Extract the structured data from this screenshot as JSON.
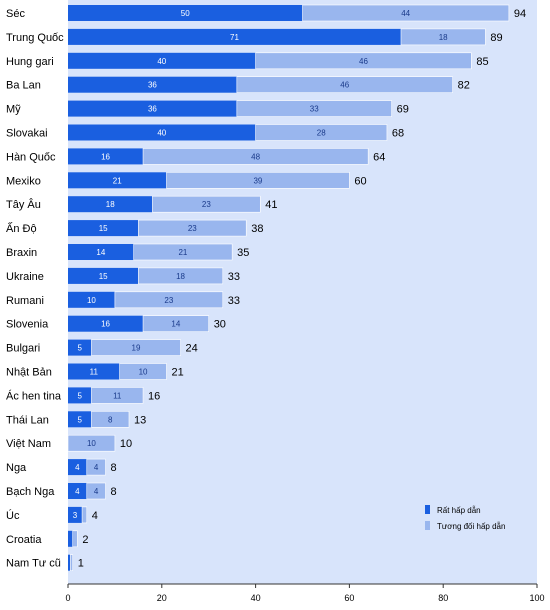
{
  "chart_data": {
    "type": "bar",
    "orientation": "horizontal",
    "stacked": true,
    "categories": [
      "Séc",
      "Trung Quốc",
      "Hung gari",
      "Ba Lan",
      "Mỹ",
      "Slovakai",
      "Hàn Quốc",
      "Mexiko",
      "Tây Âu",
      "Ấn Độ",
      "Braxin",
      "Ukraine",
      "Rumani",
      "Slovenia",
      "Bulgari",
      "Nhật Bản",
      "Ác hen tina",
      "Thái Lan",
      "Việt Nam",
      "Nga",
      "Bạch Nga",
      "Úc",
      "Croatia",
      "Nam Tư cũ"
    ],
    "series": [
      {
        "name": "Rất hấp dẫn",
        "color": "#1a5fe0",
        "values": [
          50,
          71,
          40,
          36,
          36,
          40,
          16,
          21,
          18,
          15,
          14,
          15,
          10,
          16,
          5,
          11,
          5,
          5,
          0,
          4,
          4,
          3,
          1,
          0.5
        ]
      },
      {
        "name": "Tương đối hấp dẫn",
        "color": "#99b6ee",
        "values": [
          44,
          18,
          46,
          46,
          33,
          28,
          48,
          39,
          23,
          23,
          21,
          18,
          23,
          14,
          19,
          10,
          11,
          8,
          10,
          4,
          4,
          1,
          1,
          0.5
        ]
      }
    ],
    "segment_labels": [
      [
        "50",
        "44"
      ],
      [
        "71",
        "18"
      ],
      [
        "40",
        "46"
      ],
      [
        "36",
        "46"
      ],
      [
        "36",
        "33"
      ],
      [
        "40",
        "28"
      ],
      [
        "16",
        "48"
      ],
      [
        "21",
        "39"
      ],
      [
        "18",
        "23"
      ],
      [
        "15",
        "23"
      ],
      [
        "14",
        "21"
      ],
      [
        "15",
        "18"
      ],
      [
        "10",
        "23"
      ],
      [
        "16",
        "14"
      ],
      [
        "5",
        "19"
      ],
      [
        "11",
        "10"
      ],
      [
        "5",
        "11"
      ],
      [
        "5",
        "8"
      ],
      [
        "",
        "10"
      ],
      [
        "4",
        "4"
      ],
      [
        "4",
        "4"
      ],
      [
        "3",
        ""
      ],
      [
        "",
        ""
      ],
      [
        "",
        ""
      ]
    ],
    "totals": [
      94,
      89,
      85,
      82,
      69,
      68,
      64,
      60,
      41,
      38,
      35,
      33,
      33,
      30,
      24,
      21,
      16,
      13,
      10,
      8,
      8,
      4,
      2,
      1
    ],
    "xlim": [
      0,
      100
    ],
    "xticks": [
      0,
      20,
      40,
      60,
      80,
      100
    ],
    "xlabel": "",
    "ylabel": "",
    "title": "",
    "grid": false,
    "legend_position": "bottom-right",
    "background_color": "#d8e4fb"
  }
}
